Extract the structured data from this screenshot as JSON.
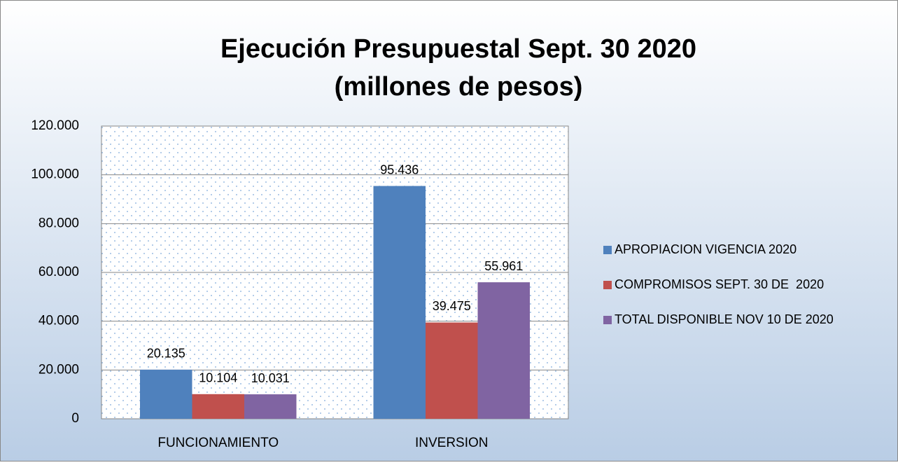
{
  "chart_data": {
    "type": "bar",
    "title": [
      "Ejecución Presupuestal Sept. 30 2020",
      "(millones de pesos)"
    ],
    "categories": [
      "FUNCIONAMIENTO",
      "INVERSION"
    ],
    "series": [
      {
        "name": "APROPIACION VIGENCIA 2020",
        "color": "#4f81bd",
        "values": [
          20135,
          95436
        ],
        "value_labels": [
          "20.135",
          "95.436"
        ]
      },
      {
        "name": "COMPROMISOS SEPT. 30 DE  2020",
        "color": "#c0504d",
        "values": [
          10104,
          39475
        ],
        "value_labels": [
          "10.104",
          "39.475"
        ]
      },
      {
        "name": "TOTAL DISPONIBLE NOV 10 DE 2020",
        "color": "#8064a2",
        "values": [
          10031,
          55961
        ],
        "value_labels": [
          "10.031",
          "55.961"
        ]
      }
    ],
    "ylim": [
      0,
      120000
    ],
    "yticks": [
      0,
      {
        "value": 20000,
        "label": "20.000"
      },
      {
        "value": 40000,
        "label": "40.000"
      },
      {
        "value": 60000,
        "label": "60.000"
      },
      {
        "value": 80000,
        "label": "80.000"
      },
      {
        "value": 100000,
        "label": "100.000"
      },
      {
        "value": 120000,
        "label": "120.000"
      }
    ],
    "grid": true,
    "legend": "right"
  }
}
